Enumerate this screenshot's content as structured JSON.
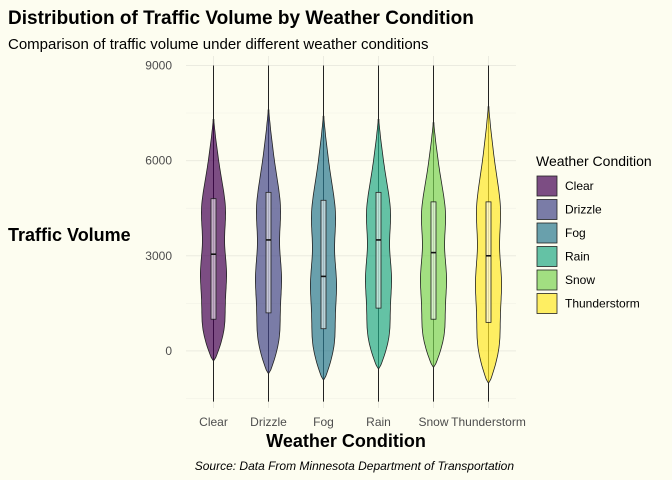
{
  "chart_data": {
    "type": "violin",
    "title": "Distribution of Traffic Volume by Weather Condition",
    "subtitle": "Comparison of traffic volume under different weather conditions",
    "xlabel": "Weather Condition",
    "ylabel": "Traffic Volume",
    "caption": "Source: Data From Minnesota Department of Transportation",
    "ylim": [
      -1800,
      9300
    ],
    "yticks": [
      0,
      3000,
      6000,
      9000
    ],
    "grid": true,
    "legend": {
      "title": "Weather Condition",
      "placement": "right"
    },
    "series": [
      {
        "name": "Clear",
        "color": "#440154",
        "whisker_low": -1600,
        "q1": 1000,
        "median": 3050,
        "q3": 4800,
        "whisker_high": 9000,
        "violin_min": -300,
        "violin_max": 7300
      },
      {
        "name": "Drizzle",
        "color": "#414487",
        "whisker_low": -1600,
        "q1": 1200,
        "median": 3500,
        "q3": 5000,
        "whisker_high": 9000,
        "violin_min": -700,
        "violin_max": 7600
      },
      {
        "name": "Fog",
        "color": "#2a788e",
        "whisker_low": -1600,
        "q1": 700,
        "median": 2350,
        "q3": 4750,
        "whisker_high": 9000,
        "violin_min": -900,
        "violin_max": 7400
      },
      {
        "name": "Rain",
        "color": "#22a884",
        "whisker_low": -1600,
        "q1": 1350,
        "median": 3500,
        "q3": 5000,
        "whisker_high": 9000,
        "violin_min": -550,
        "violin_max": 7300
      },
      {
        "name": "Snow",
        "color": "#7ad151",
        "whisker_low": -1600,
        "q1": 1000,
        "median": 3100,
        "q3": 4700,
        "whisker_high": 9000,
        "violin_min": -500,
        "violin_max": 7200
      },
      {
        "name": "Thunderstorm",
        "color": "#fde725",
        "whisker_low": -1600,
        "q1": 900,
        "median": 3000,
        "q3": 4700,
        "whisker_high": 9000,
        "violin_min": -1000,
        "violin_max": 7700
      }
    ]
  }
}
